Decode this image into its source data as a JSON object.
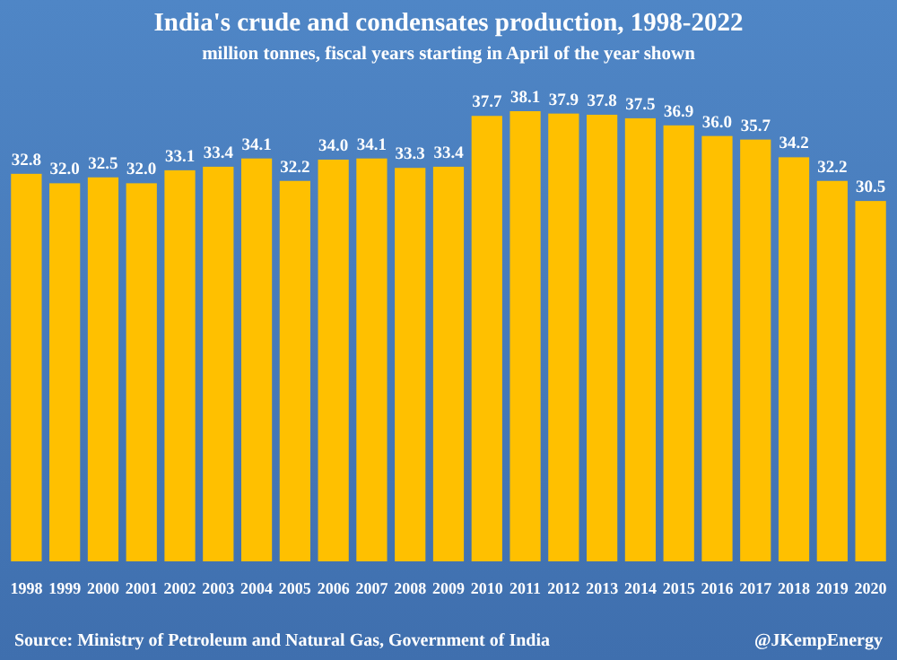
{
  "chart_data": {
    "type": "bar",
    "title": "India's crude and condensates production, 1998-2022",
    "subtitle": "million tonnes, fiscal years starting in April of the year shown",
    "categories": [
      "1998",
      "1999",
      "2000",
      "2001",
      "2002",
      "2003",
      "2004",
      "2005",
      "2006",
      "2007",
      "2008",
      "2009",
      "2010",
      "2011",
      "2012",
      "2013",
      "2014",
      "2015",
      "2016",
      "2017",
      "2018",
      "2019",
      "2020"
    ],
    "values": [
      32.8,
      32.0,
      32.5,
      32.0,
      33.1,
      33.4,
      34.1,
      32.2,
      34.0,
      34.1,
      33.3,
      33.4,
      37.7,
      38.1,
      37.9,
      37.8,
      37.5,
      36.9,
      36.0,
      35.7,
      34.2,
      32.2,
      30.5
    ],
    "value_labels": [
      "32.8",
      "32.0",
      "32.5",
      "32.0",
      "33.1",
      "33.4",
      "34.1",
      "32.2",
      "34.0",
      "34.1",
      "33.3",
      "33.4",
      "37.7",
      "38.1",
      "37.9",
      "37.8",
      "37.5",
      "36.9",
      "36.0",
      "35.7",
      "34.2",
      "32.2",
      "30.5"
    ],
    "color": "#ffc000",
    "annotations": [
      "Source: Ministry of Petroleum and Natural Gas, Government of India",
      "@JKempEnergy"
    ]
  }
}
